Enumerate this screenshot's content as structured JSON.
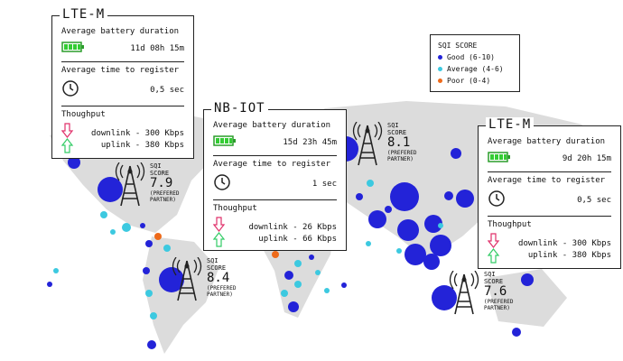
{
  "cards": [
    {
      "title": "LTE-M",
      "battery_label": "Average battery duration",
      "battery_value": "11d 08h 15m",
      "register_label": "Average time to register",
      "register_value": "0,5 sec",
      "throughput_label": "Thoughput",
      "downlink": "downlink - 300 Kbps",
      "uplink": "uplink - 380 Kbps"
    },
    {
      "title": "NB-IOT",
      "battery_label": "Average battery duration",
      "battery_value": "15d 23h 45m",
      "register_label": "Average time to register",
      "register_value": "1 sec",
      "throughput_label": "Thoughput",
      "downlink": "downlink - 26 Kbps",
      "uplink": "uplink - 66 Kbps"
    },
    {
      "title": "LTE-M",
      "battery_label": "Average battery duration",
      "battery_value": "9d 20h 15m",
      "register_label": "Average time to register",
      "register_value": "0,5 sec",
      "throughput_label": "Thoughput",
      "downlink": "downlink - 300 Kbps",
      "uplink": "uplink - 380 Kbps"
    }
  ],
  "legend": {
    "title": "SQI SCORE",
    "items": [
      {
        "label": "Good (6-10)",
        "color": "#2323d8"
      },
      {
        "label": "Average (4-6)",
        "color": "#3cc9e0"
      },
      {
        "label": "Poor (0-4)",
        "color": "#ee6a1a"
      }
    ]
  },
  "towers": [
    {
      "label": "SQI SCORE",
      "score": "7.9",
      "note": "(PREFERED PARTNER)"
    },
    {
      "label": "SQI SCORE",
      "score": "8.4",
      "note": "(PREFERED PARTNER)"
    },
    {
      "label": "SQI SCORE",
      "score": "8.1",
      "note": "(PREFERED PARTNER)"
    },
    {
      "label": "SQI SCORE",
      "score": "7.6",
      "note": "(PREFERED PARTNER)"
    }
  ]
}
